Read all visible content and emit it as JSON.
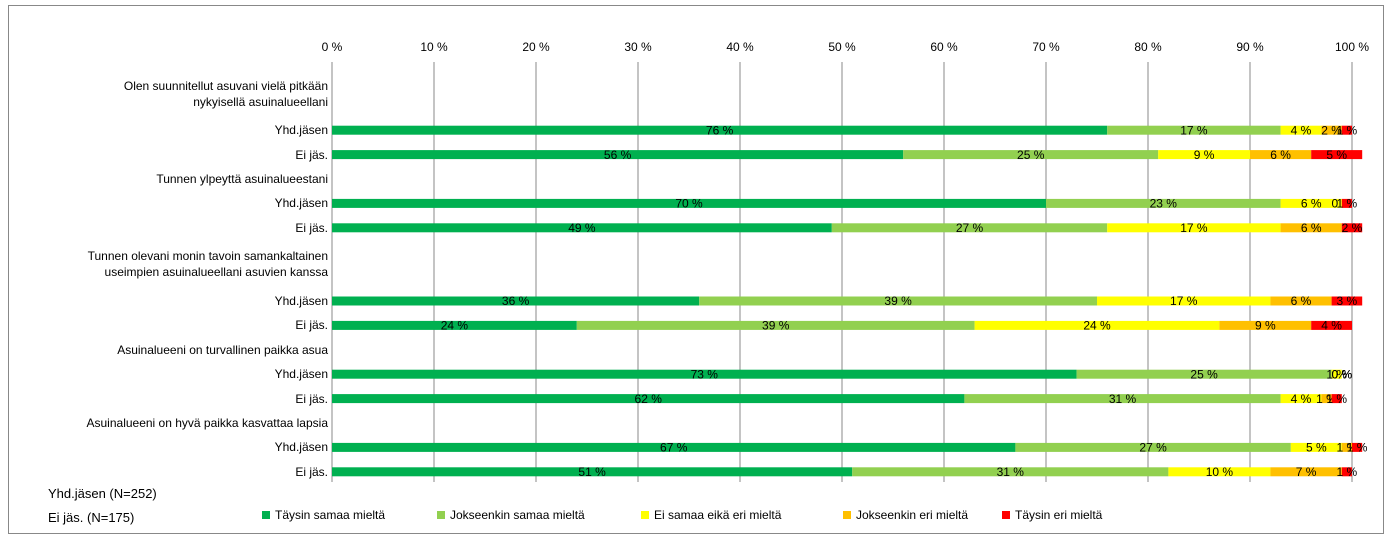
{
  "chart_data": {
    "type": "stacked-barh",
    "categories": [
      "Olen suunnitellut asuvani vielä pitkään\nnykyisellä asuinalueellani",
      "Yhd.jäsen",
      "Ei jäs.",
      "Tunnen ylpeyttä asuinalueestani",
      "Yhd.jäsen",
      "Ei jäs.",
      "Tunnen olevani monin tavoin samankaltainen\nuseimpien asuinalueellani asuvien kanssa",
      "Yhd.jäsen",
      "Ei jäs.",
      "Asuinalueeni on turvallinen paikka asua",
      "Yhd.jäsen",
      "Ei jäs.",
      "Asuinalueeni on hyvä paikka kasvattaa lapsia",
      "Yhd.jäsen",
      "Ei jäs."
    ],
    "series": [
      {
        "name": "Täysin samaa mieltä",
        "color": "#00b050",
        "values": [
          null,
          76,
          56,
          null,
          70,
          49,
          null,
          36,
          24,
          null,
          73,
          62,
          null,
          67,
          51
        ],
        "value_labels": [
          null,
          "76 %",
          "56 %",
          null,
          "70 %",
          "49 %",
          null,
          "36 %",
          "24 %",
          null,
          "73 %",
          "62 %",
          null,
          "67 %",
          "51 %"
        ]
      },
      {
        "name": "Jokseenkin samaa mieltä",
        "color": "#92d050",
        "values": [
          null,
          17,
          25,
          null,
          23,
          27,
          null,
          39,
          39,
          null,
          25,
          31,
          null,
          27,
          31
        ],
        "value_labels": [
          null,
          "17 %",
          "25 %",
          null,
          "23 %",
          "27 %",
          null,
          "39 %",
          "39 %",
          null,
          "25 %",
          "31 %",
          null,
          "27 %",
          "31 %"
        ]
      },
      {
        "name": "Ei  samaa eikä eri mieltä",
        "color": "#ffff00",
        "values": [
          null,
          4,
          9,
          null,
          6,
          17,
          null,
          17,
          24,
          null,
          1,
          4,
          null,
          5,
          10
        ],
        "value_labels": [
          null,
          "4 %",
          "9 %",
          null,
          "6 %",
          "17 %",
          null,
          "17 %",
          "24 %",
          null,
          "1 %",
          "4 %",
          null,
          "5 %",
          "10 %"
        ]
      },
      {
        "name": "Jokseenkin eri mieltä",
        "color": "#ffc000",
        "values": [
          null,
          2,
          6,
          null,
          0,
          6,
          null,
          6,
          9,
          null,
          0,
          1,
          null,
          1,
          7
        ],
        "value_labels": [
          null,
          "2 %",
          "6 %",
          null,
          "0 %",
          "6 %",
          null,
          "6 %",
          "9 %",
          null,
          "0 %",
          "1 %",
          null,
          "1 %",
          "7 %"
        ]
      },
      {
        "name": "Täysin eri mieltä",
        "color": "#ff0000",
        "values": [
          null,
          1,
          5,
          null,
          1,
          2,
          null,
          3,
          4,
          null,
          0,
          1,
          null,
          1,
          1
        ],
        "value_labels": [
          null,
          "1 %",
          "5 %",
          null,
          "1 %",
          "2 %",
          null,
          "3 %",
          "4 %",
          null,
          "0 %",
          "1 %",
          null,
          "1 %",
          "1 %"
        ]
      }
    ],
    "xlim": [
      0,
      100
    ],
    "xticks": [
      {
        "value": 0,
        "label": "0 %"
      },
      {
        "value": 10,
        "label": "10 %"
      },
      {
        "value": 20,
        "label": "20 %"
      },
      {
        "value": 30,
        "label": "30 %"
      },
      {
        "value": 40,
        "label": "40 %"
      },
      {
        "value": 50,
        "label": "50 %"
      },
      {
        "value": 60,
        "label": "60 %"
      },
      {
        "value": 70,
        "label": "70 %"
      },
      {
        "value": 80,
        "label": "80 %"
      },
      {
        "value": 90,
        "label": "90 %"
      },
      {
        "value": 100,
        "label": "100 %"
      }
    ],
    "grid": true,
    "legend": "bottom",
    "annotations": [
      "Yhd.jäsen (N=252)",
      "Ei jäs. (N=175)"
    ]
  }
}
